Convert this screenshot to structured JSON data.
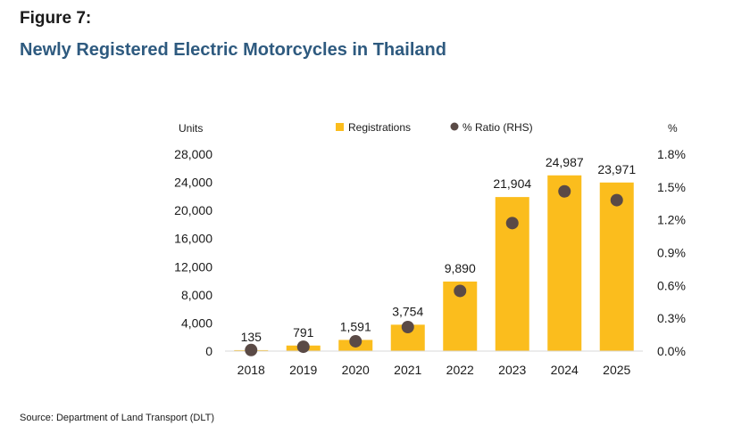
{
  "figure": {
    "label": "Figure 7:",
    "title": "Newly Registered Electric Motorcycles in Thailand",
    "source": "Source: Department of Land Transport (DLT)"
  },
  "chart_data": {
    "type": "bar",
    "categories": [
      "2018",
      "2019",
      "2020",
      "2021",
      "2022",
      "2023",
      "2024",
      "2025"
    ],
    "series": [
      {
        "name": "Registrations",
        "kind": "bar",
        "axis": "left",
        "color": "#fbbd1d",
        "values": [
          135,
          791,
          1591,
          3754,
          9890,
          21904,
          24987,
          23971
        ],
        "data_labels": [
          "135",
          "791",
          "1,591",
          "3,754",
          "9,890",
          "21,904",
          "24,987",
          "23,971"
        ]
      },
      {
        "name": "% Ratio (RHS)",
        "kind": "scatter",
        "axis": "right",
        "color": "#5a4a46",
        "values": [
          0.01,
          0.04,
          0.09,
          0.22,
          0.55,
          1.17,
          1.46,
          1.38
        ]
      }
    ],
    "left_axis": {
      "label": "Units",
      "ylim": [
        0,
        28000
      ],
      "ticks": [
        0,
        4000,
        8000,
        12000,
        16000,
        20000,
        24000,
        28000
      ],
      "tick_labels": [
        "0",
        "4,000",
        "8,000",
        "12,000",
        "16,000",
        "20,000",
        "24,000",
        "28,000"
      ]
    },
    "right_axis": {
      "label": "%",
      "ylim": [
        0,
        1.8
      ],
      "ticks": [
        0,
        0.3,
        0.6,
        0.9,
        1.2,
        1.5,
        1.8
      ],
      "tick_labels": [
        "0.0%",
        "0.3%",
        "0.6%",
        "0.9%",
        "1.2%",
        "1.5%",
        "1.8%"
      ]
    },
    "legend_position": "top-center",
    "grid": false
  }
}
